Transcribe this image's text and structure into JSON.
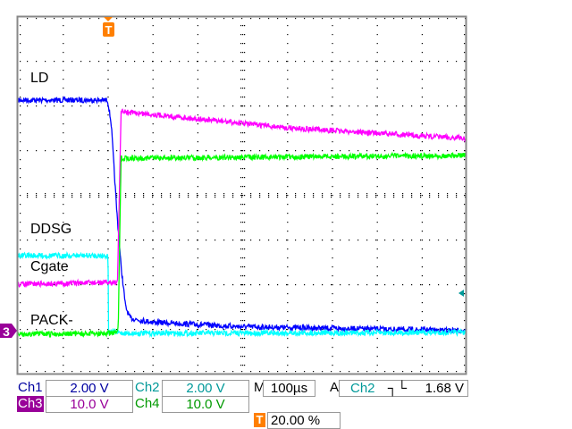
{
  "chart_data": {
    "type": "line",
    "title": "",
    "x_unit": "µs",
    "xlim": [
      -200,
      800
    ],
    "ylim_div": [
      -4,
      4
    ],
    "grid": true,
    "trigger_position_percent": 20,
    "series": [
      {
        "name": "Ch1",
        "color": "#0000ff",
        "t": [
          -200,
          0,
          8,
          20,
          30,
          40,
          50,
          100,
          300,
          800
        ],
        "y_div": [
          2.12,
          2.12,
          1.6,
          -0.3,
          -1.6,
          -2.5,
          -2.76,
          -2.85,
          -2.95,
          -3.04
        ]
      },
      {
        "name": "Ch2",
        "color": "#00ffff",
        "t": [
          -200,
          1,
          2,
          40,
          800
        ],
        "y_div": [
          -1.36,
          -1.36,
          -3.06,
          -3.1,
          -3.08
        ]
      },
      {
        "name": "Ch3",
        "color": "#ff00ff",
        "t": [
          -200,
          20,
          22,
          30,
          100,
          400,
          800
        ],
        "y_div": [
          -2.0,
          -1.96,
          -2.0,
          1.86,
          1.8,
          1.5,
          1.26
        ]
      },
      {
        "name": "Ch4",
        "color": "#00ff00",
        "t": [
          -200,
          22,
          24,
          30,
          800
        ],
        "y_div": [
          -3.12,
          -3.1,
          -2.8,
          0.82,
          0.88
        ]
      }
    ],
    "annotations": [
      "LD",
      "DDSG",
      "Cgate",
      "PACK-"
    ]
  },
  "markers": {
    "trigger": "T",
    "ch3_ground": "3"
  },
  "readout": {
    "ch1_label": "Ch1",
    "ch1_scale": "2.00 V",
    "ch2_label": "Ch2",
    "ch2_scale": "2.00 V",
    "ch3_label": "Ch3",
    "ch3_scale": "10.0 V",
    "ch4_label": "Ch4",
    "ch4_scale": "10.0 V",
    "timebase_label": "M",
    "timebase": "100µs",
    "trigger_label": "A",
    "trigger_source": "Ch2",
    "trigger_slope": "falling-edge-icon",
    "trigger_level": "1.68 V",
    "trigger_position": "20.00 %"
  },
  "colors": {
    "ch1": "#0000a0",
    "ch2": "#009999",
    "ch3": "#990099",
    "ch4": "#009900",
    "trigger": "#ff7f00"
  }
}
